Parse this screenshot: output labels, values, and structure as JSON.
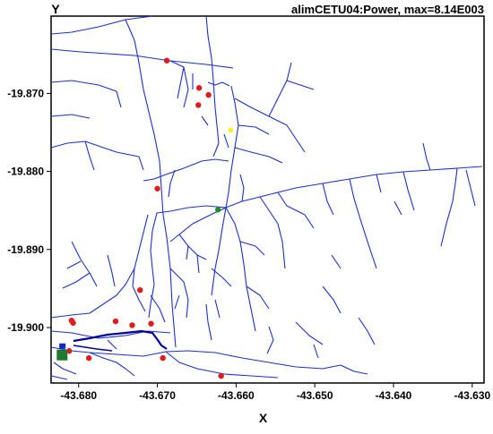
{
  "title": "alimCETU04:Power, max=8.14E003",
  "x_axis": {
    "label": "X",
    "ticks": [
      "-43.680",
      "-43.670",
      "-43.660",
      "-43.650",
      "-43.640",
      "-43.630"
    ],
    "tick_values": [
      -43.68,
      -43.67,
      -43.66,
      -43.65,
      -43.64,
      -43.63
    ]
  },
  "y_axis": {
    "label": "Y",
    "ticks": [
      "-19.870",
      "-19.880",
      "-19.890",
      "-19.900"
    ],
    "tick_values": [
      -19.87,
      -19.88,
      -19.89,
      -19.9
    ]
  },
  "colors": {
    "network": "#1a2fd6",
    "feeder": "#0000a0",
    "red_node": "#e11b1b",
    "yellow_node": "#ffee22",
    "green_node": "#1f8f2b",
    "source": "#1f7a2c",
    "source_blue": "#1326c9"
  },
  "chart_data": {
    "type": "scatter",
    "title": "alimCETU04:Power, max=8.14E003",
    "xlabel": "X",
    "ylabel": "Y",
    "xlim": [
      -43.6835,
      -43.6285
    ],
    "ylim": [
      -19.9071,
      -19.8601
    ],
    "grid": false,
    "series": [
      {
        "color": "red",
        "points": [
          [
            -43.6688,
            -19.8658
          ],
          [
            -43.6647,
            -19.8693
          ],
          [
            -43.6635,
            -19.8702
          ],
          [
            -43.6648,
            -19.8715
          ],
          [
            -43.67,
            -19.8822
          ],
          [
            -43.6722,
            -19.8952
          ],
          [
            -43.6809,
            -19.8991
          ],
          [
            -43.6807,
            -19.8994
          ],
          [
            -43.6753,
            -19.8992
          ],
          [
            -43.6732,
            -19.8997
          ],
          [
            -43.6708,
            -19.8995
          ],
          [
            -43.6693,
            -19.9039
          ],
          [
            -43.6787,
            -19.9039
          ],
          [
            -43.6812,
            -19.903
          ],
          [
            -43.6619,
            -19.9062
          ]
        ]
      },
      {
        "color": "yellow",
        "points": [
          [
            -43.6607,
            -19.8747
          ]
        ]
      },
      {
        "color": "green",
        "points": [
          [
            -43.6623,
            -19.8849
          ]
        ]
      },
      {
        "color": "green square",
        "points": [
          [
            -43.6821,
            -19.9034
          ]
        ]
      },
      {
        "color": "blue",
        "points": [
          [
            -43.682,
            -19.9026
          ]
        ]
      }
    ]
  }
}
